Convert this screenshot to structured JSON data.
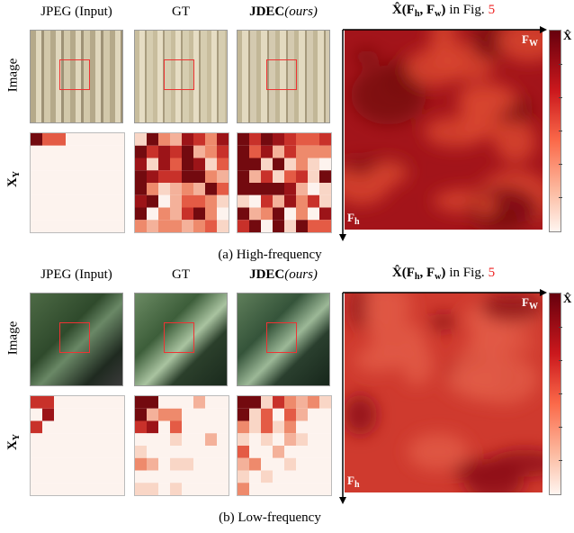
{
  "panels": [
    {
      "headers": {
        "input": "JPEG (Input)",
        "gt": "GT",
        "ours_name": "JDEC",
        "ours_note": "(ours)",
        "map_symbol": "X̂(F",
        "map_sub1": "h",
        "map_sep": ", F",
        "map_sub2": "w",
        "map_close": ")",
        "map_text": "in Fig.",
        "map_ref": "5"
      },
      "row_labels": {
        "image": "Image",
        "coef": "X",
        "coef_sub": "Y"
      },
      "axis": {
        "width": "F",
        "width_sub": "W",
        "height": "F",
        "height_sub": "h"
      },
      "colorbar_label": "X̂",
      "caption": "(a) High-frequency"
    },
    {
      "headers": {
        "input": "JPEG (Input)",
        "gt": "GT",
        "ours_name": "JDEC",
        "ours_note": "(ours)",
        "map_symbol": "X̂(F",
        "map_sub1": "h",
        "map_sep": ", F",
        "map_sub2": "w",
        "map_close": ")",
        "map_text": "in Fig.",
        "map_ref": "5"
      },
      "row_labels": {
        "image": "Image",
        "coef": "X",
        "coef_sub": "Y"
      },
      "axis": {
        "width": "F",
        "width_sub": "W",
        "height": "F",
        "height_sub": "h"
      },
      "colorbar_label": "X̂",
      "caption": "(b) Low-frequency"
    }
  ]
}
